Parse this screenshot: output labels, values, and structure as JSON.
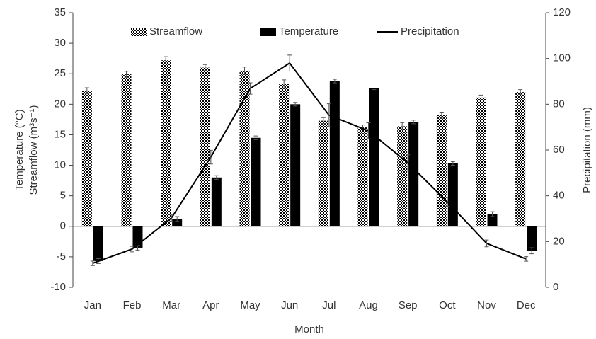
{
  "chart_data": {
    "type": "bar-line",
    "categories": [
      "Jan",
      "Feb",
      "Mar",
      "Apr",
      "May",
      "Jun",
      "Jul",
      "Aug",
      "Sep",
      "Oct",
      "Nov",
      "Dec"
    ],
    "series": [
      {
        "name": "Streamflow",
        "type": "bar",
        "color": "#000000",
        "pattern": "checker",
        "values": [
          22.2,
          24.9,
          27.2,
          26.0,
          25.5,
          23.3,
          17.3,
          16.2,
          16.4,
          18.2,
          21.1,
          22.0
        ],
        "errors": [
          0.5,
          0.5,
          0.6,
          0.5,
          0.6,
          0.7,
          0.5,
          0.4,
          0.6,
          0.5,
          0.4,
          0.4
        ]
      },
      {
        "name": "Temperature",
        "type": "bar",
        "color": "#000000",
        "values": [
          -5.7,
          -3.5,
          1.2,
          8.0,
          14.5,
          20.0,
          23.8,
          22.7,
          17.1,
          10.3,
          2.0,
          -4.0
        ],
        "errors": [
          0.4,
          0.4,
          0.4,
          0.3,
          0.3,
          0.3,
          0.3,
          0.3,
          0.3,
          0.3,
          0.4,
          0.5
        ]
      },
      {
        "name": "Precipitation",
        "type": "line",
        "color": "#000000",
        "axis": "y2",
        "values": [
          10.5,
          16.7,
          30.3,
          56.9,
          86.9,
          98.0,
          75.2,
          68.4,
          54.4,
          37.4,
          19.2,
          12.4
        ],
        "errors": [
          1.0,
          1.2,
          1.5,
          3.0,
          2.5,
          3.5,
          5.0,
          3.5,
          3.5,
          2.0,
          1.5,
          1.0
        ]
      }
    ],
    "ylim": [
      -10,
      35
    ],
    "yticks": [
      -10,
      -5,
      0,
      5,
      10,
      15,
      20,
      25,
      30,
      35
    ],
    "y2lim": [
      0,
      120
    ],
    "y2ticks": [
      0,
      20,
      40,
      60,
      80,
      100,
      120
    ],
    "ylabel": [
      "Temperature (°C)",
      "Streamflow (m³s⁻¹)"
    ],
    "y2label": "Precipitation (mm)",
    "xlabel": "Month",
    "legend": "top",
    "grid": false
  }
}
